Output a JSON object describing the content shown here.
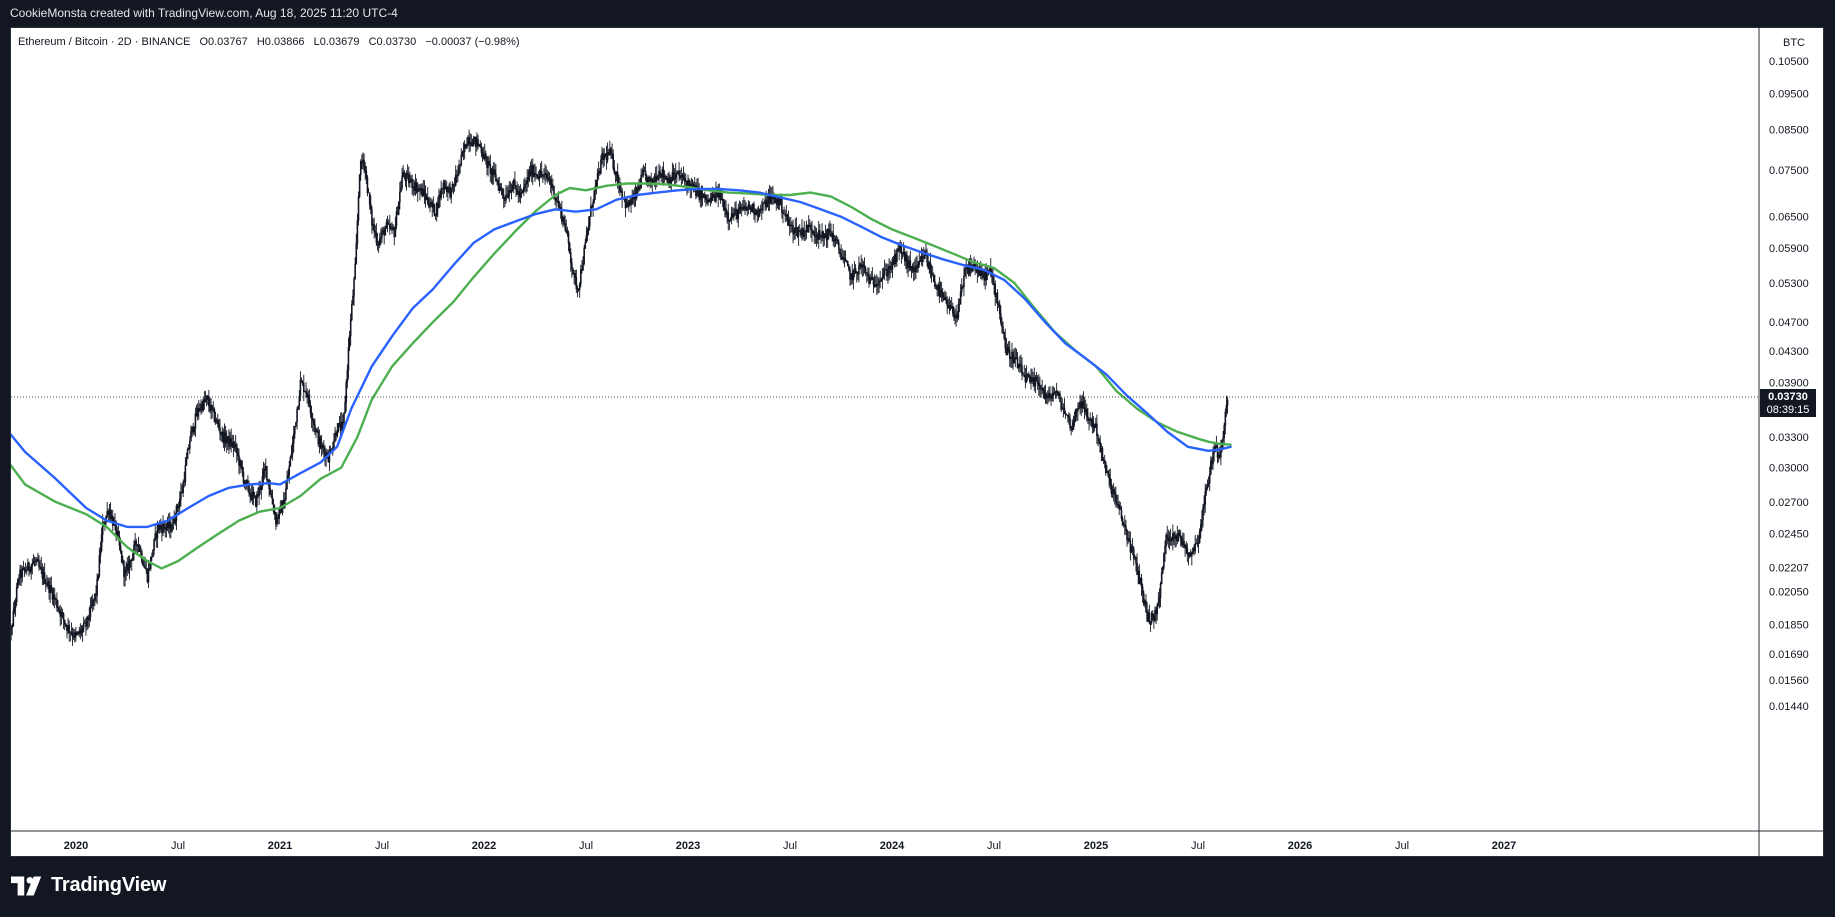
{
  "header": {
    "credit": "CookieMonsta created with TradingView.com, Aug 18, 2025 11:20 UTC-4"
  },
  "legend": {
    "symbol": "Ethereum / Bitcoin · 2D · BINANCE",
    "open": "O0.03767",
    "high": "H0.03866",
    "low": "L0.03679",
    "close": "C0.03730",
    "change": "−0.00037 (−0.98%)"
  },
  "footer": {
    "brand": "TradingView",
    "logo_icon": "tradingview-logo-icon"
  },
  "colors": {
    "ma_green": "#4caf50",
    "ma_blue": "#2962ff",
    "candles": "#131722",
    "price_label_bg": "#131722"
  },
  "chart_data": {
    "type": "candlestick",
    "price_unit": "BTC",
    "last_price_label": "0.03730",
    "countdown_label": "08:39:15",
    "y_scale": "log",
    "ylim": [
      0.0138,
      0.113
    ],
    "y_ticks": [
      "0.10500",
      "0.09500",
      "0.08500",
      "0.07500",
      "0.06500",
      "0.05900",
      "0.05300",
      "0.04700",
      "0.04300",
      "0.03900",
      "0.03300",
      "0.03000",
      "0.02700",
      "0.02450",
      "0.02207",
      "0.02050",
      "0.01850",
      "0.01690",
      "0.01560",
      "0.01440"
    ],
    "x_ticks": [
      {
        "label": "2020",
        "date": 2020.0,
        "bold": true
      },
      {
        "label": "Jul",
        "date": 2020.5,
        "bold": false
      },
      {
        "label": "2021",
        "date": 2021.0,
        "bold": true
      },
      {
        "label": "Jul",
        "date": 2021.5,
        "bold": false
      },
      {
        "label": "2022",
        "date": 2022.0,
        "bold": true
      },
      {
        "label": "Jul",
        "date": 2022.5,
        "bold": false
      },
      {
        "label": "2023",
        "date": 2023.0,
        "bold": true
      },
      {
        "label": "Jul",
        "date": 2023.5,
        "bold": false
      },
      {
        "label": "2024",
        "date": 2024.0,
        "bold": true
      },
      {
        "label": "Jul",
        "date": 2024.5,
        "bold": false
      },
      {
        "label": "2025",
        "date": 2025.0,
        "bold": true
      },
      {
        "label": "Jul",
        "date": 2025.5,
        "bold": false
      },
      {
        "label": "2026",
        "date": 2026.0,
        "bold": true
      },
      {
        "label": "Jul",
        "date": 2026.5,
        "bold": false
      },
      {
        "label": "2027",
        "date": 2027.0,
        "bold": true
      }
    ],
    "xlim": [
      2019.65,
      2027.0
    ],
    "price_path": [
      [
        2019.66,
        0.0165
      ],
      [
        2019.72,
        0.0215
      ],
      [
        2019.8,
        0.0225
      ],
      [
        2019.88,
        0.0205
      ],
      [
        2019.95,
        0.0185
      ],
      [
        2020.0,
        0.0178
      ],
      [
        2020.05,
        0.0185
      ],
      [
        2020.1,
        0.0205
      ],
      [
        2020.13,
        0.025
      ],
      [
        2020.16,
        0.0265
      ],
      [
        2020.2,
        0.0245
      ],
      [
        2020.24,
        0.0215
      ],
      [
        2020.3,
        0.024
      ],
      [
        2020.35,
        0.0215
      ],
      [
        2020.4,
        0.025
      ],
      [
        2020.47,
        0.025
      ],
      [
        2020.52,
        0.028
      ],
      [
        2020.56,
        0.033
      ],
      [
        2020.6,
        0.036
      ],
      [
        2020.64,
        0.037
      ],
      [
        2020.68,
        0.035
      ],
      [
        2020.72,
        0.033
      ],
      [
        2020.78,
        0.032
      ],
      [
        2020.83,
        0.0285
      ],
      [
        2020.88,
        0.027
      ],
      [
        2020.93,
        0.03
      ],
      [
        2020.98,
        0.0255
      ],
      [
        2021.02,
        0.027
      ],
      [
        2021.06,
        0.032
      ],
      [
        2021.1,
        0.039
      ],
      [
        2021.13,
        0.038
      ],
      [
        2021.17,
        0.034
      ],
      [
        2021.2,
        0.032
      ],
      [
        2021.24,
        0.031
      ],
      [
        2021.28,
        0.034
      ],
      [
        2021.31,
        0.034
      ],
      [
        2021.34,
        0.045
      ],
      [
        2021.37,
        0.056
      ],
      [
        2021.39,
        0.075
      ],
      [
        2021.41,
        0.078
      ],
      [
        2021.45,
        0.064
      ],
      [
        2021.48,
        0.06
      ],
      [
        2021.52,
        0.063
      ],
      [
        2021.56,
        0.062
      ],
      [
        2021.6,
        0.074
      ],
      [
        2021.65,
        0.072
      ],
      [
        2021.7,
        0.07
      ],
      [
        2021.76,
        0.066
      ],
      [
        2021.8,
        0.072
      ],
      [
        2021.84,
        0.07
      ],
      [
        2021.88,
        0.076
      ],
      [
        2021.92,
        0.083
      ],
      [
        2021.95,
        0.082
      ],
      [
        2021.98,
        0.081
      ],
      [
        2022.02,
        0.076
      ],
      [
        2022.06,
        0.073
      ],
      [
        2022.1,
        0.069
      ],
      [
        2022.14,
        0.072
      ],
      [
        2022.18,
        0.069
      ],
      [
        2022.23,
        0.075
      ],
      [
        2022.28,
        0.074
      ],
      [
        2022.32,
        0.073
      ],
      [
        2022.36,
        0.068
      ],
      [
        2022.4,
        0.063
      ],
      [
        2022.44,
        0.054
      ],
      [
        2022.46,
        0.052
      ],
      [
        2022.49,
        0.058
      ],
      [
        2022.53,
        0.068
      ],
      [
        2022.58,
        0.078
      ],
      [
        2022.62,
        0.079
      ],
      [
        2022.66,
        0.072
      ],
      [
        2022.7,
        0.067
      ],
      [
        2022.74,
        0.069
      ],
      [
        2022.78,
        0.074
      ],
      [
        2022.82,
        0.072
      ],
      [
        2022.86,
        0.075
      ],
      [
        2022.9,
        0.073
      ],
      [
        2022.95,
        0.074
      ],
      [
        2023.0,
        0.072
      ],
      [
        2023.05,
        0.07
      ],
      [
        2023.1,
        0.068
      ],
      [
        2023.15,
        0.07
      ],
      [
        2023.2,
        0.065
      ],
      [
        2023.25,
        0.066
      ],
      [
        2023.3,
        0.067
      ],
      [
        2023.35,
        0.066
      ],
      [
        2023.4,
        0.069
      ],
      [
        2023.45,
        0.068
      ],
      [
        2023.5,
        0.063
      ],
      [
        2023.55,
        0.062
      ],
      [
        2023.6,
        0.063
      ],
      [
        2023.65,
        0.061
      ],
      [
        2023.7,
        0.062
      ],
      [
        2023.75,
        0.058
      ],
      [
        2023.8,
        0.054
      ],
      [
        2023.85,
        0.056
      ],
      [
        2023.9,
        0.053
      ],
      [
        2023.95,
        0.054
      ],
      [
        2024.0,
        0.056
      ],
      [
        2024.04,
        0.059
      ],
      [
        2024.08,
        0.056
      ],
      [
        2024.12,
        0.055
      ],
      [
        2024.16,
        0.058
      ],
      [
        2024.2,
        0.054
      ],
      [
        2024.24,
        0.051
      ],
      [
        2024.28,
        0.049
      ],
      [
        2024.32,
        0.048
      ],
      [
        2024.36,
        0.055
      ],
      [
        2024.4,
        0.056
      ],
      [
        2024.44,
        0.054
      ],
      [
        2024.48,
        0.055
      ],
      [
        2024.52,
        0.05
      ],
      [
        2024.56,
        0.043
      ],
      [
        2024.6,
        0.042
      ],
      [
        2024.64,
        0.04
      ],
      [
        2024.68,
        0.039
      ],
      [
        2024.72,
        0.039
      ],
      [
        2024.76,
        0.037
      ],
      [
        2024.8,
        0.038
      ],
      [
        2024.84,
        0.036
      ],
      [
        2024.88,
        0.034
      ],
      [
        2024.92,
        0.037
      ],
      [
        2024.96,
        0.035
      ],
      [
        2025.0,
        0.034
      ],
      [
        2025.03,
        0.031
      ],
      [
        2025.06,
        0.029
      ],
      [
        2025.1,
        0.027
      ],
      [
        2025.14,
        0.025
      ],
      [
        2025.18,
        0.023
      ],
      [
        2025.22,
        0.021
      ],
      [
        2025.25,
        0.019
      ],
      [
        2025.28,
        0.0188
      ],
      [
        2025.31,
        0.02
      ],
      [
        2025.34,
        0.024
      ],
      [
        2025.38,
        0.0245
      ],
      [
        2025.42,
        0.024
      ],
      [
        2025.46,
        0.023
      ],
      [
        2025.5,
        0.024
      ],
      [
        2025.54,
        0.028
      ],
      [
        2025.58,
        0.032
      ],
      [
        2025.61,
        0.031
      ],
      [
        2025.64,
        0.037
      ],
      [
        2025.65,
        0.0373
      ]
    ],
    "series": [
      {
        "name": "",
        "color": "#4caf50",
        "points": [
          [
            2019.65,
            0.031
          ],
          [
            2019.75,
            0.0285
          ],
          [
            2019.9,
            0.027
          ],
          [
            2020.05,
            0.026
          ],
          [
            2020.15,
            0.025
          ],
          [
            2020.25,
            0.0235
          ],
          [
            2020.35,
            0.0225
          ],
          [
            2020.42,
            0.022
          ],
          [
            2020.5,
            0.0225
          ],
          [
            2020.6,
            0.0235
          ],
          [
            2020.7,
            0.0245
          ],
          [
            2020.8,
            0.0255
          ],
          [
            2020.9,
            0.0262
          ],
          [
            2021.0,
            0.0265
          ],
          [
            2021.1,
            0.0275
          ],
          [
            2021.2,
            0.029
          ],
          [
            2021.3,
            0.03
          ],
          [
            2021.38,
            0.033
          ],
          [
            2021.45,
            0.037
          ],
          [
            2021.55,
            0.041
          ],
          [
            2021.65,
            0.044
          ],
          [
            2021.75,
            0.047
          ],
          [
            2021.85,
            0.05
          ],
          [
            2021.95,
            0.054
          ],
          [
            2022.05,
            0.058
          ],
          [
            2022.15,
            0.062
          ],
          [
            2022.25,
            0.066
          ],
          [
            2022.35,
            0.0695
          ],
          [
            2022.42,
            0.071
          ],
          [
            2022.5,
            0.0705
          ],
          [
            2022.6,
            0.0715
          ],
          [
            2022.7,
            0.072
          ],
          [
            2022.8,
            0.072
          ],
          [
            2022.9,
            0.0718
          ],
          [
            2023.0,
            0.0712
          ],
          [
            2023.1,
            0.0705
          ],
          [
            2023.2,
            0.07
          ],
          [
            2023.3,
            0.0698
          ],
          [
            2023.4,
            0.0695
          ],
          [
            2023.5,
            0.0695
          ],
          [
            2023.6,
            0.07
          ],
          [
            2023.7,
            0.0692
          ],
          [
            2023.8,
            0.067
          ],
          [
            2023.9,
            0.0645
          ],
          [
            2024.0,
            0.0625
          ],
          [
            2024.1,
            0.061
          ],
          [
            2024.2,
            0.0595
          ],
          [
            2024.3,
            0.058
          ],
          [
            2024.4,
            0.0565
          ],
          [
            2024.5,
            0.0555
          ],
          [
            2024.6,
            0.053
          ],
          [
            2024.7,
            0.049
          ],
          [
            2024.8,
            0.0455
          ],
          [
            2024.9,
            0.043
          ],
          [
            2025.0,
            0.041
          ],
          [
            2025.1,
            0.038
          ],
          [
            2025.2,
            0.036
          ],
          [
            2025.3,
            0.0345
          ],
          [
            2025.4,
            0.0335
          ],
          [
            2025.5,
            0.0328
          ],
          [
            2025.55,
            0.0325
          ],
          [
            2025.6,
            0.0323
          ],
          [
            2025.66,
            0.0322
          ]
        ]
      },
      {
        "name": "",
        "color": "#2962ff",
        "points": [
          [
            2019.65,
            0.034
          ],
          [
            2019.75,
            0.0315
          ],
          [
            2019.9,
            0.029
          ],
          [
            2020.05,
            0.0265
          ],
          [
            2020.15,
            0.0255
          ],
          [
            2020.25,
            0.025
          ],
          [
            2020.35,
            0.025
          ],
          [
            2020.45,
            0.0255
          ],
          [
            2020.55,
            0.0265
          ],
          [
            2020.65,
            0.0275
          ],
          [
            2020.75,
            0.0282
          ],
          [
            2020.85,
            0.0285
          ],
          [
            2020.95,
            0.0286
          ],
          [
            2021.0,
            0.0285
          ],
          [
            2021.1,
            0.0295
          ],
          [
            2021.2,
            0.0305
          ],
          [
            2021.28,
            0.032
          ],
          [
            2021.35,
            0.036
          ],
          [
            2021.45,
            0.041
          ],
          [
            2021.55,
            0.045
          ],
          [
            2021.65,
            0.049
          ],
          [
            2021.75,
            0.052
          ],
          [
            2021.85,
            0.056
          ],
          [
            2021.95,
            0.06
          ],
          [
            2022.05,
            0.0625
          ],
          [
            2022.15,
            0.064
          ],
          [
            2022.25,
            0.0655
          ],
          [
            2022.35,
            0.0665
          ],
          [
            2022.45,
            0.066
          ],
          [
            2022.55,
            0.0665
          ],
          [
            2022.65,
            0.0685
          ],
          [
            2022.75,
            0.0695
          ],
          [
            2022.85,
            0.07
          ],
          [
            2022.95,
            0.0705
          ],
          [
            2023.05,
            0.0708
          ],
          [
            2023.15,
            0.0708
          ],
          [
            2023.25,
            0.0705
          ],
          [
            2023.35,
            0.07
          ],
          [
            2023.45,
            0.069
          ],
          [
            2023.55,
            0.068
          ],
          [
            2023.65,
            0.0665
          ],
          [
            2023.75,
            0.065
          ],
          [
            2023.85,
            0.063
          ],
          [
            2023.95,
            0.061
          ],
          [
            2024.05,
            0.0595
          ],
          [
            2024.15,
            0.0582
          ],
          [
            2024.25,
            0.057
          ],
          [
            2024.35,
            0.056
          ],
          [
            2024.45,
            0.0552
          ],
          [
            2024.55,
            0.0535
          ],
          [
            2024.65,
            0.0505
          ],
          [
            2024.75,
            0.047
          ],
          [
            2024.85,
            0.044
          ],
          [
            2024.95,
            0.042
          ],
          [
            2025.05,
            0.04
          ],
          [
            2025.15,
            0.0375
          ],
          [
            2025.25,
            0.0355
          ],
          [
            2025.35,
            0.0335
          ],
          [
            2025.45,
            0.032
          ],
          [
            2025.55,
            0.0316
          ],
          [
            2025.6,
            0.0317
          ],
          [
            2025.66,
            0.032
          ]
        ]
      }
    ]
  }
}
